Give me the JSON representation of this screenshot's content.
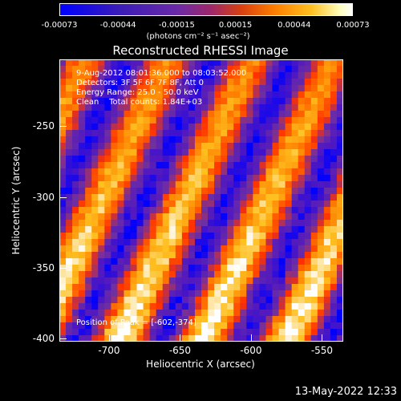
{
  "colorbar": {
    "ticks": [
      "-0.00073",
      "-0.00044",
      "-0.00015",
      "0.00015",
      "0.00044",
      "0.00073"
    ],
    "unit": "(photons cm⁻² s⁻¹ asec⁻²)",
    "range": [
      -0.00073,
      0.00073
    ]
  },
  "chart_data": {
    "type": "heatmap",
    "title": "Reconstructed RHESSI Image",
    "xlabel": "Heliocentric X (arcsec)",
    "ylabel": "Heliocentric Y (arcsec)",
    "xlim": [
      -735,
      -535
    ],
    "ylim": [
      -402,
      -203
    ],
    "x_ticks": [
      "-700",
      "-650",
      "-600",
      "-550"
    ],
    "x_tick_values": [
      -700,
      -650,
      -600,
      -550
    ],
    "y_ticks": [
      "-250",
      "-300",
      "-350",
      "-400"
    ],
    "y_tick_values": [
      -250,
      -300,
      -350,
      -400
    ],
    "info_lines": [
      "9-Aug-2012 08:01:36.000 to 08:03:52.000",
      "Detectors: 3F 5F 6F 7F 8F, Att 0",
      "Energy Range: 25.0 - 50.0 keV",
      "Clean    Total counts: 1.84E+03"
    ],
    "peak_label": "Position of Peak = [-602,-374]",
    "peak": [
      -602,
      -374
    ],
    "colormap": [
      "#0000ff",
      "#5018c0",
      "#7030a0",
      "#ff3000",
      "#ff8000",
      "#ffc020",
      "#ffffff"
    ]
  },
  "timestamp": "13-May-2022 12:33"
}
